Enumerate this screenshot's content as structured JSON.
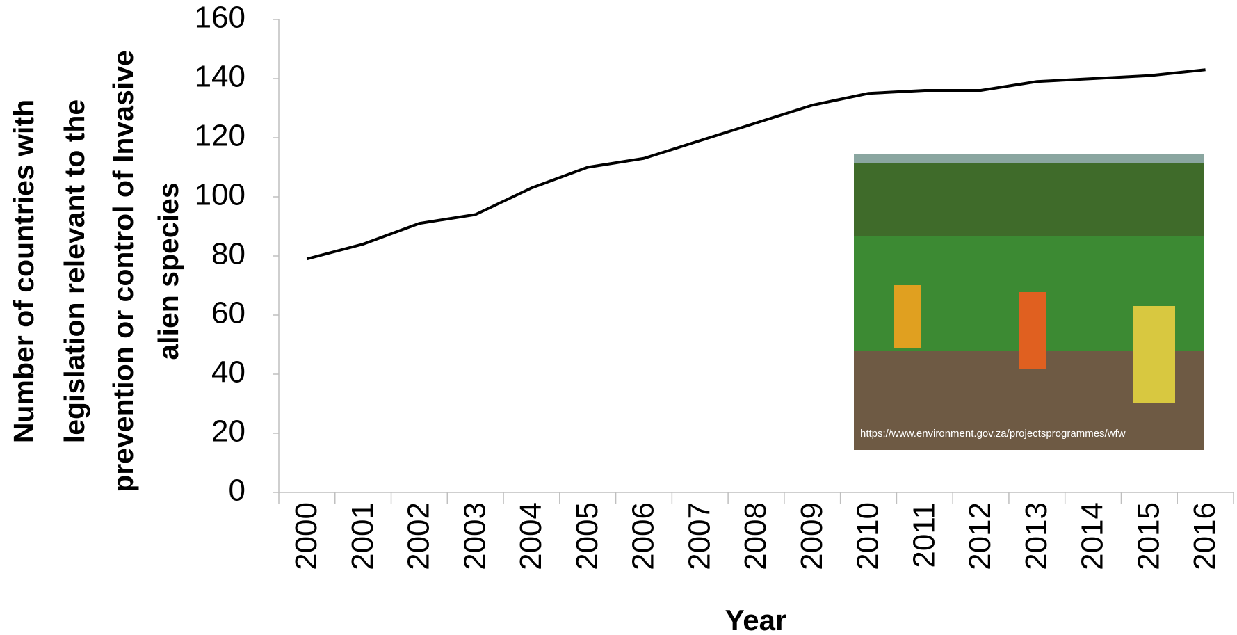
{
  "chart_data": {
    "type": "line",
    "ylabel": [
      "Number of countries with",
      "legislation relevant to the",
      "prevention or control of Invasive",
      "alien species"
    ],
    "xlabel": "Year",
    "categories": [
      "2000",
      "2001",
      "2002",
      "2003",
      "2004",
      "2005",
      "2006",
      "2007",
      "2008",
      "2009",
      "2010",
      "2011",
      "2012",
      "2013",
      "2014",
      "2015",
      "2016"
    ],
    "values": [
      79,
      84,
      91,
      94,
      103,
      110,
      113,
      119,
      125,
      131,
      135,
      136,
      136,
      139,
      140,
      141,
      143
    ],
    "color": "#000000",
    "ylim": [
      0,
      160
    ],
    "yticks": [
      0,
      20,
      40,
      60,
      80,
      100,
      120,
      140,
      160
    ],
    "image_caption": "https://www.environment.gov.za/projectsprogrammes/wfw"
  }
}
